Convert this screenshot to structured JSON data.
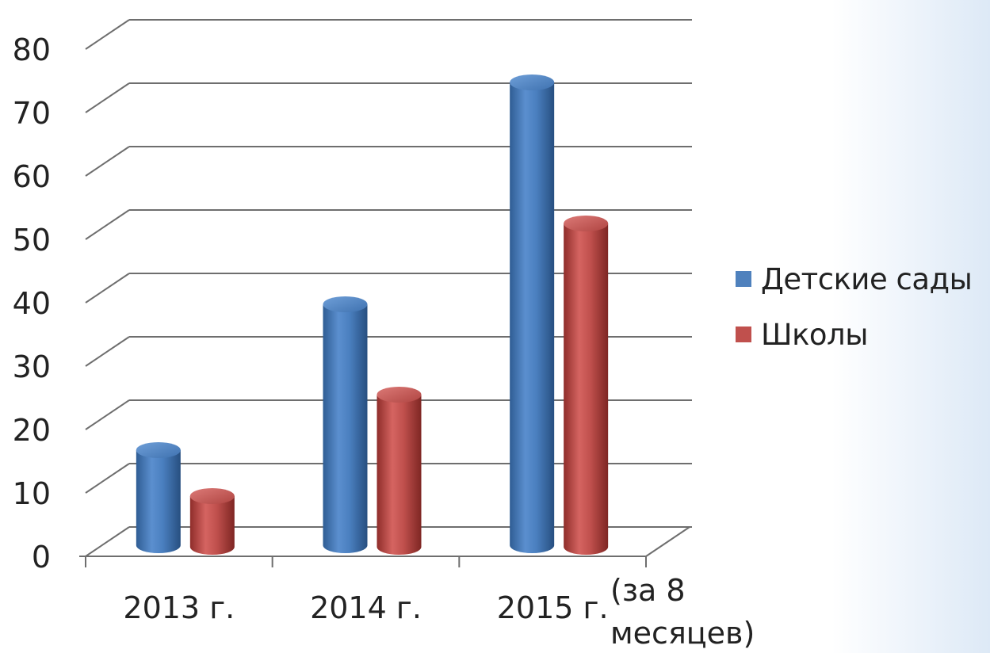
{
  "chart_data": {
    "type": "bar",
    "style": "3d-cylinder",
    "categories": [
      "2013 г.",
      "2014 г.",
      "2015 г. (за 8 месяцев)"
    ],
    "category_lines": [
      [
        "2013 г."
      ],
      [
        "2014 г."
      ],
      [
        "2015 г.",
        "(за 8",
        "месяцев)"
      ]
    ],
    "series": [
      {
        "name": "Детские сады",
        "values": [
          15,
          38,
          73
        ],
        "color": "#4f81bd"
      },
      {
        "name": "Школы",
        "values": [
          8,
          24,
          51
        ],
        "color": "#c0504d"
      }
    ],
    "ylim": [
      0,
      80
    ],
    "yticks": [
      "0",
      "10",
      "20",
      "30",
      "40",
      "50",
      "60",
      "70",
      "80"
    ],
    "grid": true,
    "legend_position": "right"
  }
}
